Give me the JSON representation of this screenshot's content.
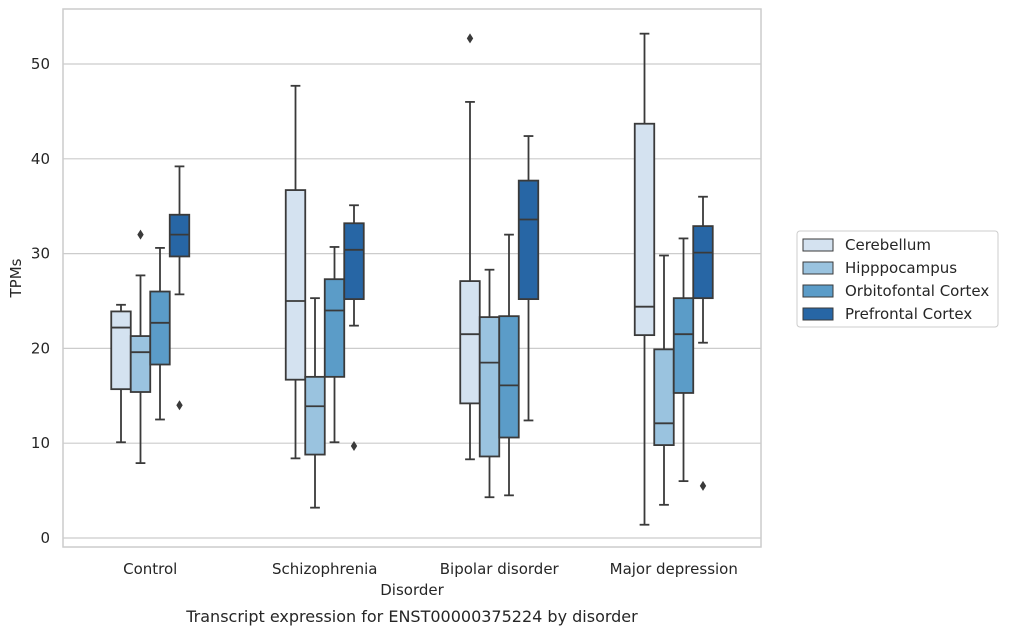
{
  "chart_data": {
    "type": "boxplot",
    "caption": "Transcript expression for ENST00000375224 by disorder",
    "xlabel": "Disorder",
    "ylabel": "TPMs",
    "ylim": [
      -1,
      56
    ],
    "yticks": [
      0,
      10,
      20,
      30,
      40,
      50
    ],
    "grid": "horizontal",
    "legend_position": "right",
    "categories": [
      "Control",
      "Schizophrenia",
      "Bipolar disorder",
      "Major depression"
    ],
    "series": [
      {
        "name": "Cerebellum",
        "color": "#d4e2f0",
        "boxes": [
          {
            "whislo": 10.1,
            "q1": 15.7,
            "med": 22.2,
            "q3": 23.9,
            "whishi": 24.6,
            "fliers": []
          },
          {
            "whislo": 8.4,
            "q1": 16.7,
            "med": 25.0,
            "q3": 36.7,
            "whishi": 47.7,
            "fliers": []
          },
          {
            "whislo": 8.3,
            "q1": 14.2,
            "med": 21.5,
            "q3": 27.1,
            "whishi": 46.0,
            "fliers": [
              52.7
            ]
          },
          {
            "whislo": 1.4,
            "q1": 21.4,
            "med": 24.4,
            "q3": 43.7,
            "whishi": 53.2,
            "fliers": []
          }
        ]
      },
      {
        "name": "Hipppocampus",
        "color": "#9ac3df",
        "boxes": [
          {
            "whislo": 7.9,
            "q1": 15.4,
            "med": 19.6,
            "q3": 21.3,
            "whishi": 27.7,
            "fliers": [
              32.0
            ]
          },
          {
            "whislo": 3.2,
            "q1": 8.8,
            "med": 13.9,
            "q3": 17.0,
            "whishi": 25.3,
            "fliers": []
          },
          {
            "whislo": 4.3,
            "q1": 8.6,
            "med": 18.5,
            "q3": 23.3,
            "whishi": 28.3,
            "fliers": []
          },
          {
            "whislo": 3.5,
            "q1": 9.8,
            "med": 12.1,
            "q3": 19.9,
            "whishi": 29.8,
            "fliers": []
          }
        ]
      },
      {
        "name": "Orbitofontal Cortex",
        "color": "#5b9cc8",
        "boxes": [
          {
            "whislo": 12.5,
            "q1": 18.3,
            "med": 22.7,
            "q3": 26.0,
            "whishi": 30.6,
            "fliers": []
          },
          {
            "whislo": 10.1,
            "q1": 17.0,
            "med": 24.0,
            "q3": 27.3,
            "whishi": 30.7,
            "fliers": []
          },
          {
            "whislo": 4.5,
            "q1": 10.6,
            "med": 16.1,
            "q3": 23.4,
            "whishi": 32.0,
            "fliers": []
          },
          {
            "whislo": 6.0,
            "q1": 15.3,
            "med": 21.5,
            "q3": 25.3,
            "whishi": 31.6,
            "fliers": []
          }
        ]
      },
      {
        "name": "Prefrontal Cortex",
        "color": "#2766a5",
        "boxes": [
          {
            "whislo": 25.7,
            "q1": 29.7,
            "med": 32.0,
            "q3": 34.1,
            "whishi": 39.2,
            "fliers": [
              14.0
            ]
          },
          {
            "whislo": 22.4,
            "q1": 25.2,
            "med": 30.4,
            "q3": 33.2,
            "whishi": 35.1,
            "fliers": [
              9.7
            ]
          },
          {
            "whislo": 12.4,
            "q1": 25.2,
            "med": 33.6,
            "q3": 37.7,
            "whishi": 42.4,
            "fliers": []
          },
          {
            "whislo": 20.6,
            "q1": 25.3,
            "med": 30.1,
            "q3": 32.9,
            "whishi": 36.0,
            "fliers": [
              5.5
            ]
          }
        ]
      }
    ]
  }
}
